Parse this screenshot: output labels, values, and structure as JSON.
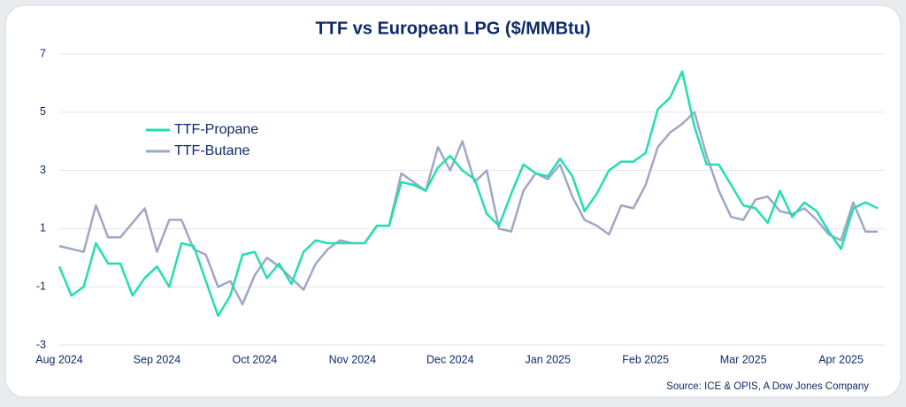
{
  "chart_data": {
    "type": "line",
    "title": "TTF vs European LPG ($/MMBtu)",
    "source": "Source: ICE & OPIS, A Dow Jones Company",
    "categories": [
      "Aug 2024",
      null,
      null,
      null,
      null,
      null,
      null,
      null,
      "Sep 2024",
      null,
      null,
      null,
      null,
      null,
      null,
      null,
      "Oct 2024",
      null,
      null,
      null,
      null,
      null,
      null,
      null,
      "Nov 2024",
      null,
      null,
      null,
      null,
      null,
      null,
      null,
      "Dec 2024",
      null,
      null,
      null,
      null,
      null,
      null,
      null,
      "Jan 2025",
      null,
      null,
      null,
      null,
      null,
      null,
      null,
      "Feb 2025",
      null,
      null,
      null,
      null,
      null,
      null,
      null,
      "Mar 2025",
      null,
      null,
      null,
      null,
      null,
      null,
      null,
      "Apr 2025",
      null,
      null,
      null
    ],
    "series": [
      {
        "name": "TTF-Propane",
        "color": "#22dfb0",
        "values": [
          -0.3,
          -1.3,
          -1.0,
          0.5,
          -0.2,
          -0.2,
          -1.3,
          -0.7,
          -0.3,
          -1.0,
          0.5,
          0.4,
          -0.8,
          -2.0,
          -1.3,
          0.1,
          0.2,
          -0.7,
          -0.2,
          -0.9,
          0.2,
          0.6,
          0.5,
          0.5,
          0.5,
          0.5,
          1.1,
          1.1,
          2.6,
          2.5,
          2.3,
          3.1,
          3.5,
          3.0,
          2.7,
          1.5,
          1.1,
          2.2,
          3.2,
          2.9,
          2.8,
          3.4,
          2.8,
          1.6,
          2.2,
          3.0,
          3.3,
          3.3,
          3.6,
          5.1,
          5.5,
          6.4,
          4.5,
          3.2,
          3.2,
          2.5,
          1.8,
          1.7,
          1.2,
          2.3,
          1.4,
          1.9,
          1.6,
          0.9,
          0.3,
          1.7,
          1.9,
          1.7
        ]
      },
      {
        "name": "TTF-Butane",
        "color": "#9fa7c6",
        "values": [
          0.4,
          0.3,
          0.2,
          1.8,
          0.7,
          0.7,
          1.2,
          1.7,
          0.2,
          1.3,
          1.3,
          0.3,
          0.1,
          -1.0,
          -0.8,
          -1.6,
          -0.6,
          0.0,
          -0.3,
          -0.7,
          -1.1,
          -0.2,
          0.3,
          0.6,
          0.5,
          0.5,
          1.1,
          1.1,
          2.9,
          2.6,
          2.3,
          3.8,
          3.0,
          4.0,
          2.6,
          3.0,
          1.0,
          0.9,
          2.3,
          2.9,
          2.7,
          3.2,
          2.1,
          1.3,
          1.1,
          0.8,
          1.8,
          1.7,
          2.5,
          3.8,
          4.3,
          4.6,
          5.0,
          3.5,
          2.3,
          1.4,
          1.3,
          2.0,
          2.1,
          1.6,
          1.5,
          1.7,
          1.3,
          0.8,
          0.6,
          1.9,
          0.9,
          0.9
        ]
      }
    ],
    "ylim": [
      -3,
      7
    ],
    "yticks": [
      -3,
      -1,
      1,
      3,
      5,
      7
    ],
    "grid": true,
    "legend": "upper-left"
  }
}
